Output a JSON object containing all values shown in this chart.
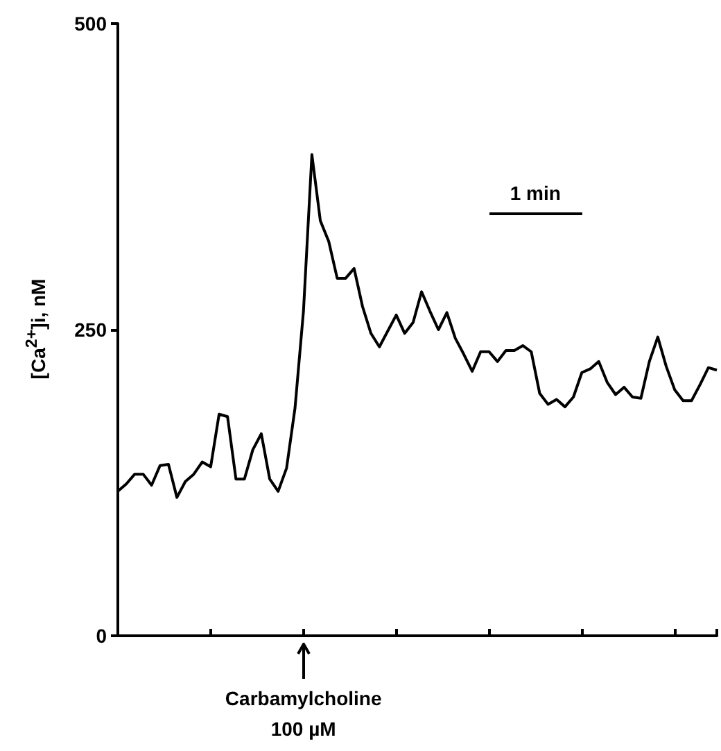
{
  "chart_data": {
    "type": "line",
    "ylabel": "[Ca$^{2+}$]i, nM",
    "annotations": [
      "Carbamylcholine\n100 µM",
      "1 min"
    ],
    "categories": [
      null,
      null,
      null,
      null,
      null,
      null,
      null,
      null,
      null,
      null,
      null,
      null,
      null,
      null,
      null,
      null,
      null,
      null,
      null,
      null,
      null,
      null,
      null,
      null,
      null,
      null,
      null,
      null,
      null,
      null,
      null,
      null,
      null,
      null,
      null,
      null,
      null,
      null,
      null,
      null,
      null,
      null,
      null,
      null,
      null,
      null,
      null,
      null,
      null,
      null,
      null,
      null,
      null,
      null,
      null,
      null,
      null,
      null,
      null,
      null,
      null,
      null,
      null,
      null,
      null,
      null,
      null,
      null,
      null,
      null,
      null,
      null
    ],
    "values": [
      118,
      124,
      132,
      132,
      123,
      139,
      140,
      113,
      126,
      132,
      142,
      138,
      181,
      179,
      128,
      128,
      152,
      165,
      128,
      118,
      137,
      186,
      265,
      393,
      339,
      322,
      292,
      292,
      300,
      269,
      247,
      236,
      249,
      262,
      247,
      256,
      281,
      265,
      250,
      264,
      243,
      230,
      216,
      232,
      232,
      224,
      233,
      233,
      237,
      232,
      198,
      189,
      193,
      187,
      195,
      215,
      218,
      224,
      207,
      197,
      203,
      195,
      194,
      224,
      244,
      220,
      201,
      192,
      192,
      205,
      219,
      217
    ],
    "color": "#000000",
    "line_style": "solid",
    "ylim": [
      0,
      500
    ],
    "yticks": [
      0,
      250,
      500
    ],
    "tick_labels": "y",
    "grid": false
  }
}
